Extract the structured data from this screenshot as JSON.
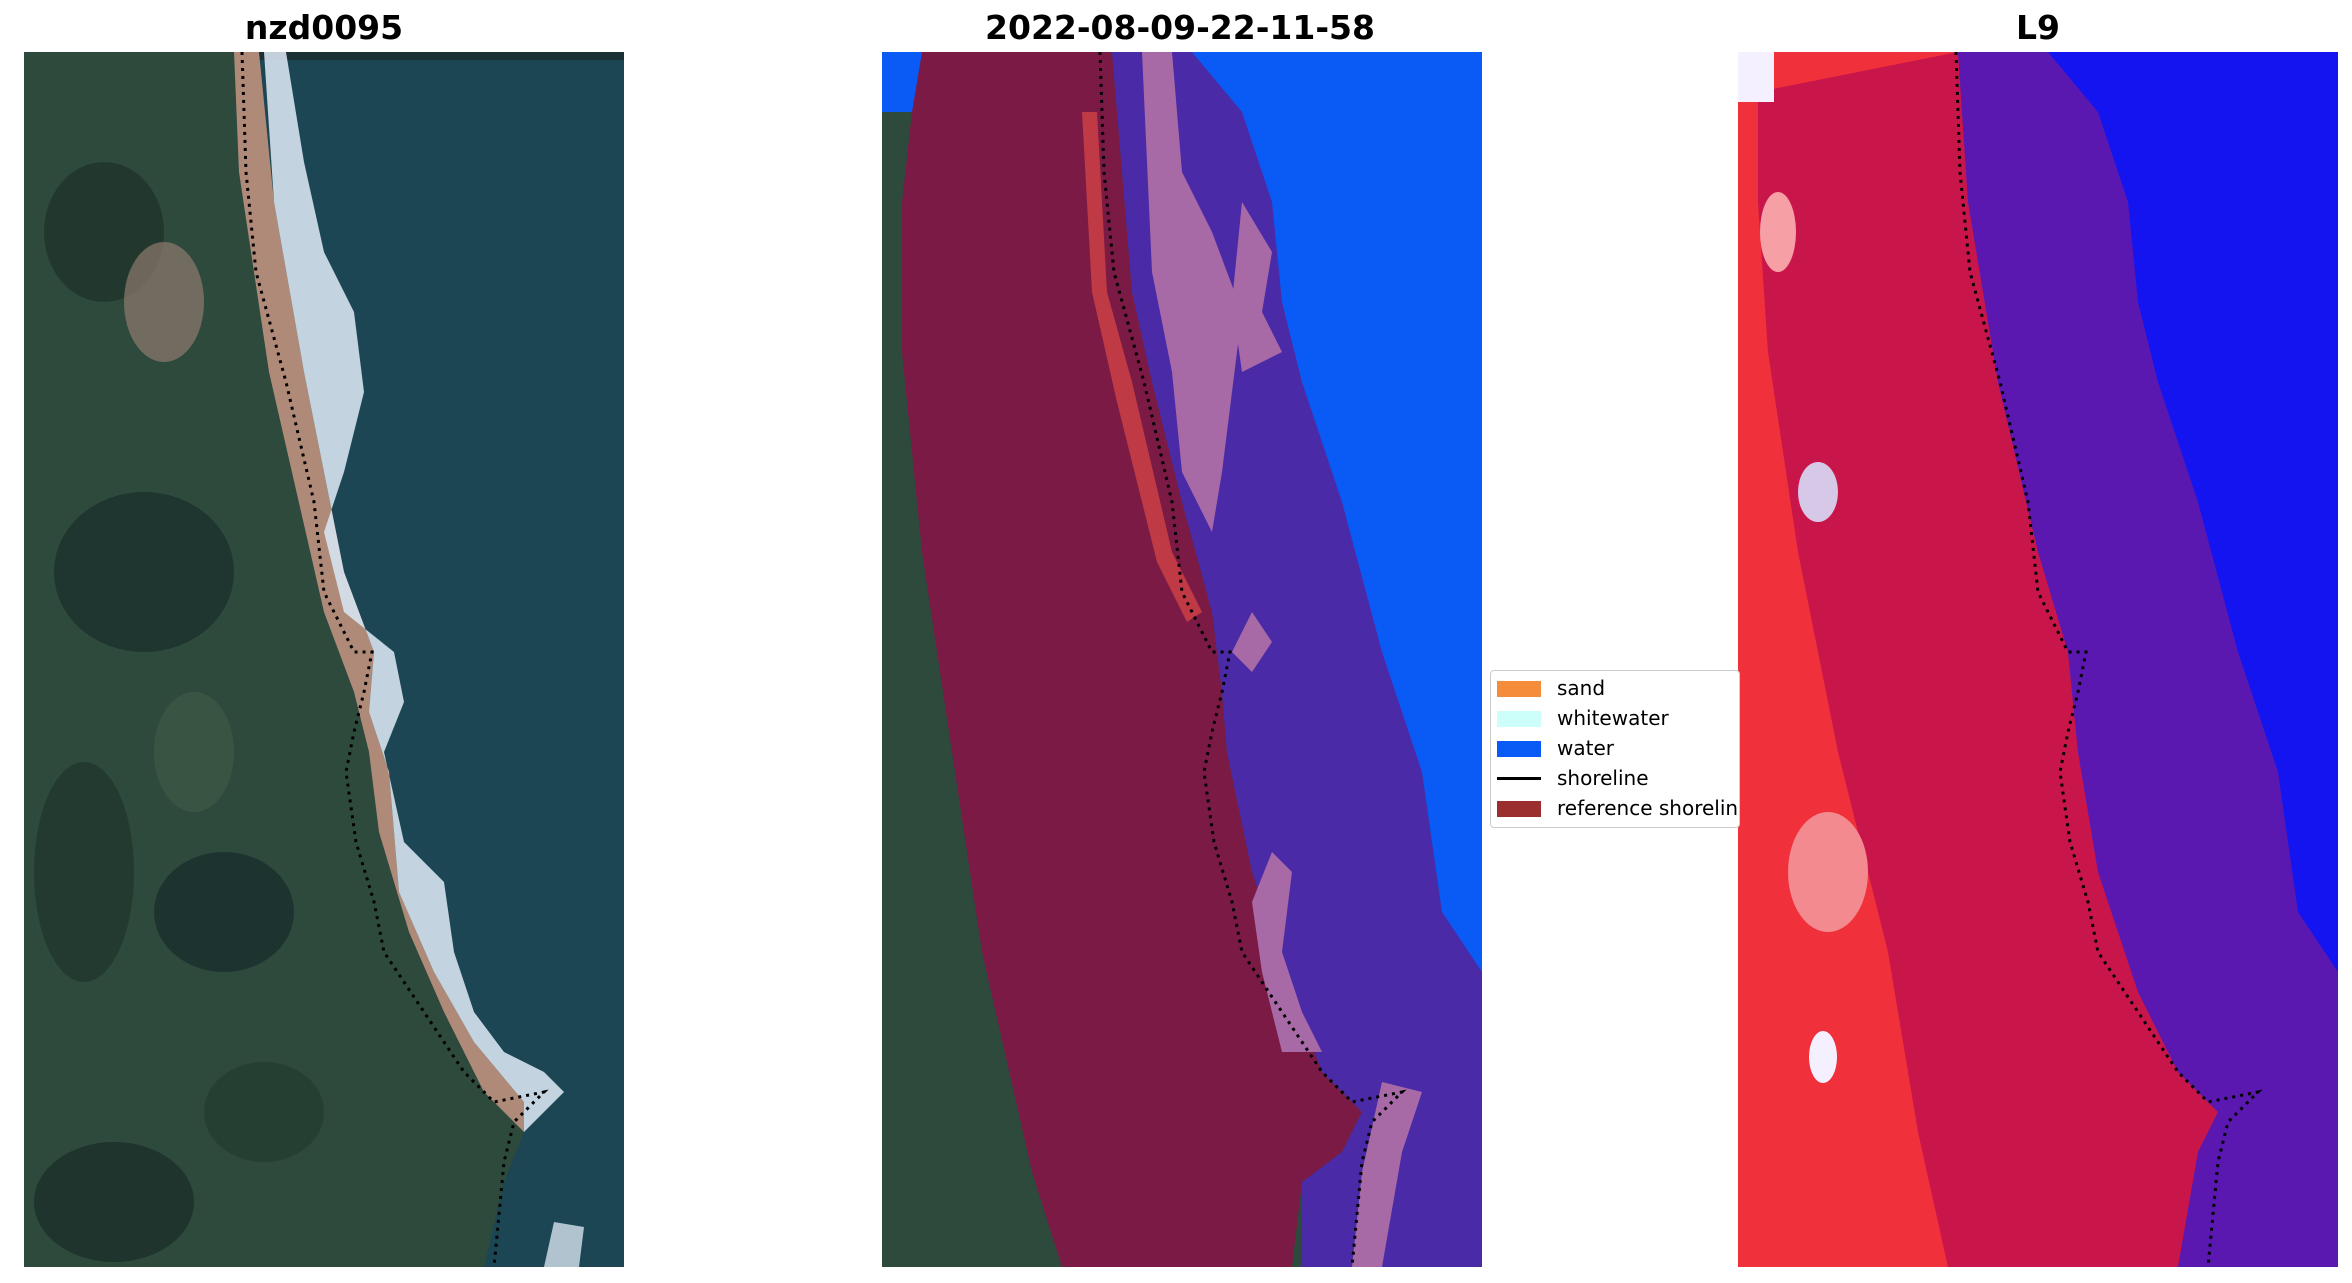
{
  "panels": [
    {
      "title": "nzd0095"
    },
    {
      "title": "2022-08-09-22-11-58"
    },
    {
      "title": "L9"
    }
  ],
  "legend": {
    "items": [
      {
        "label": "sand",
        "color": "#f48c3a",
        "type": "patch"
      },
      {
        "label": "whitewater",
        "color": "#ccfff9",
        "type": "patch"
      },
      {
        "label": "water",
        "color": "#0a5af5",
        "type": "patch"
      },
      {
        "label": "shoreline",
        "color": "#000000",
        "type": "line"
      },
      {
        "label": "reference shoreline",
        "color": "#9b2f2f",
        "type": "patch"
      }
    ]
  },
  "colors": {
    "sea": "#1b4552",
    "land": "#2f4a3a",
    "beach": "#b08a78",
    "foam": "#d8e4ee",
    "overlay_land": "#7a1a45",
    "overlay_sea": "#4a2aa6",
    "water_blue": "#0a5af5",
    "index_red": "#f0303a",
    "index_purple": "#5a18b0"
  }
}
